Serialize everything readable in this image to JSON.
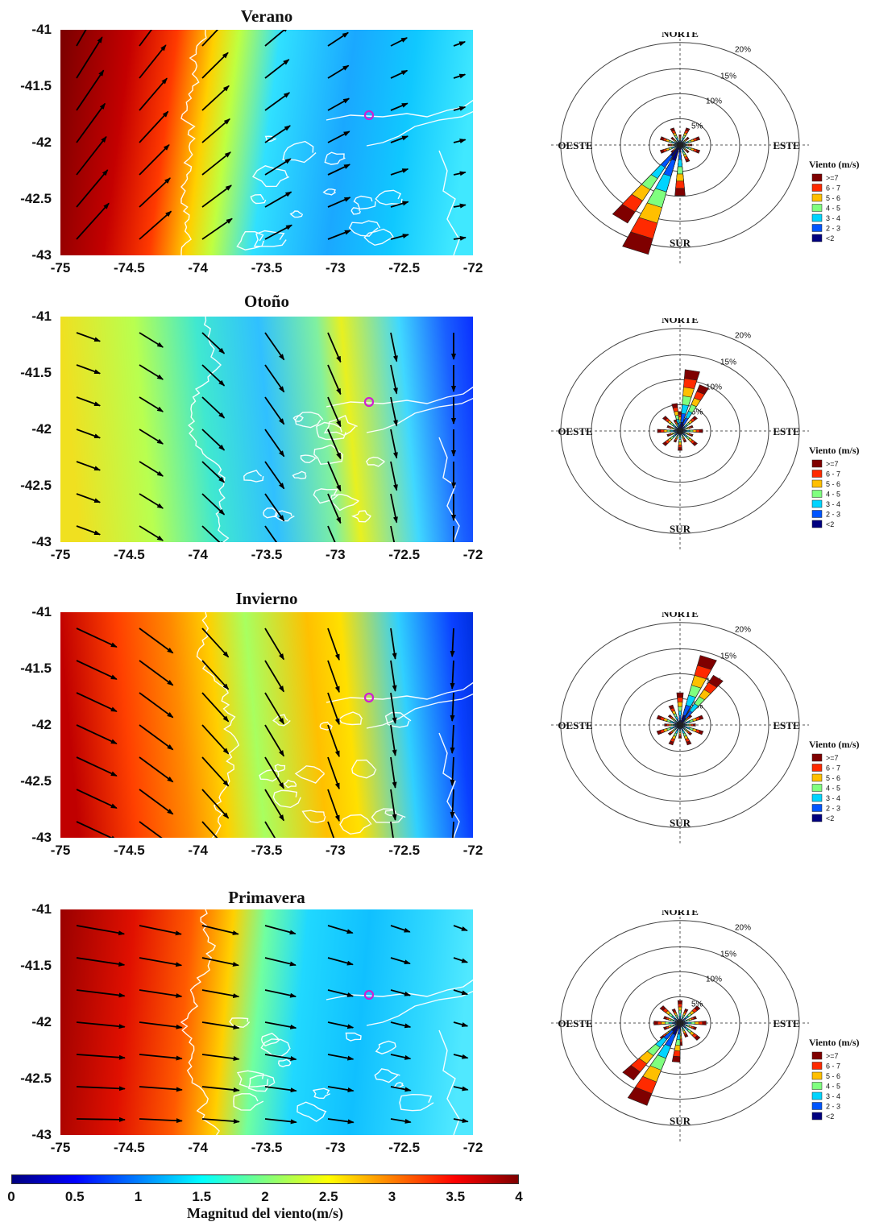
{
  "colorbar": {
    "label": "Magnitud del viento(m/s)",
    "ticks": [
      "0",
      "0.5",
      "1",
      "1.5",
      "2",
      "2.5",
      "3",
      "3.5",
      "4"
    ],
    "colors": [
      "#00007f",
      "#0000ff",
      "#007fff",
      "#00ffff",
      "#7fff7f",
      "#ffff00",
      "#ff7f00",
      "#ff0000",
      "#7f0000"
    ],
    "range": [
      0,
      4
    ]
  },
  "x_ticks": [
    "-75",
    "-74.5",
    "-74",
    "-73.5",
    "-73",
    "-72.5",
    "-72"
  ],
  "y_ticks": [
    "-41",
    "-41.5",
    "-42",
    "-42.5",
    "-43"
  ],
  "rose": {
    "north": "NORTE",
    "south": "SUR",
    "west": "OESTE",
    "east": "ESTE",
    "rings": [
      "5%",
      "10%",
      "15%",
      "20%"
    ],
    "legend_title": "Viento (m/s)",
    "legend_items": [
      {
        "label": ">=7",
        "color": "#7f0000"
      },
      {
        "label": "6 - 7",
        "color": "#ff2a00"
      },
      {
        "label": "5 - 6",
        "color": "#ffbf00"
      },
      {
        "label": "4 - 5",
        "color": "#7fff7f"
      },
      {
        "label": "3 - 4",
        "color": "#00d4ff"
      },
      {
        "label": "2 - 3",
        "color": "#0055ff"
      },
      {
        "label": "<2",
        "color": "#00007f"
      }
    ]
  },
  "seasons": [
    {
      "name": "Verano",
      "wind_dir_deg": 60,
      "rose_main_deg": 200,
      "rose_main_pct": 22
    },
    {
      "name": "Otoño",
      "wind_dir_deg": 160,
      "rose_main_deg": 10,
      "rose_main_pct": 12
    },
    {
      "name": "Invierno",
      "wind_dir_deg": 165,
      "rose_main_deg": 20,
      "rose_main_pct": 14
    },
    {
      "name": "Primavera",
      "wind_dir_deg": 95,
      "rose_main_deg": 205,
      "rose_main_pct": 17
    }
  ]
}
